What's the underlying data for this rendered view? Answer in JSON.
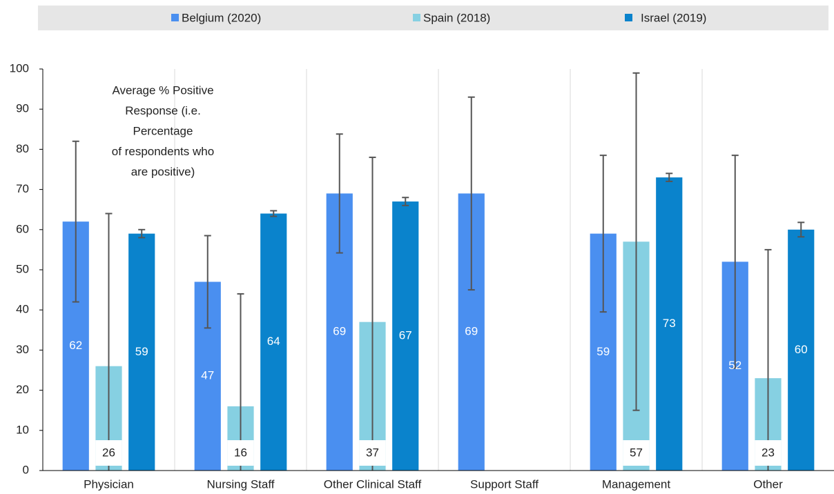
{
  "chart_data": {
    "type": "bar",
    "annotation": [
      "Average % Positive",
      "Response (i.e.",
      "Percentage",
      "of respondents who",
      "are positive)"
    ],
    "categories": [
      "Physician",
      "Nursing Staff",
      "Other Clinical Staff",
      "Support Staff",
      "Management",
      "Other"
    ],
    "series": [
      {
        "name": "Belgium (2020)",
        "color": "#4a8ff0",
        "values": [
          62,
          47,
          69,
          69,
          59,
          52
        ],
        "errors": [
          20,
          11.5,
          14.8,
          24,
          19.5,
          26.5
        ]
      },
      {
        "name": "Spain (2018)",
        "color": "#86d0e2",
        "values": [
          26,
          16,
          37,
          null,
          57,
          23
        ],
        "errors": [
          38,
          28,
          41,
          null,
          42,
          32
        ]
      },
      {
        "name": "Israel (2019)",
        "color": "#0a83cc",
        "values": [
          59,
          64,
          67,
          null,
          73,
          60
        ],
        "errors": [
          1,
          0.7,
          1,
          null,
          1,
          1.8
        ]
      }
    ],
    "ylim": [
      0,
      100
    ],
    "yticks": [
      0,
      10,
      20,
      30,
      40,
      50,
      60,
      70,
      80,
      90,
      100
    ],
    "grid": true,
    "legend": "top"
  }
}
